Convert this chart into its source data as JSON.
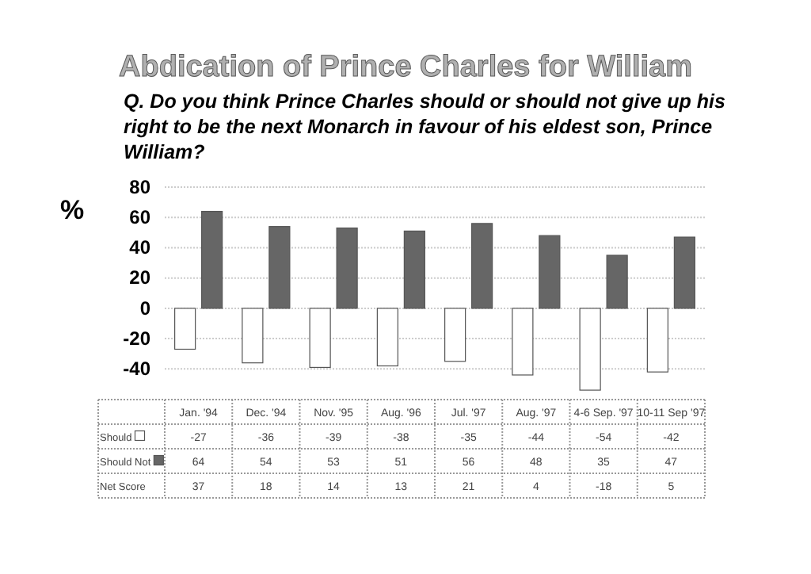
{
  "chart_data": {
    "type": "bar",
    "title": "Abdication of Prince Charles for William",
    "subtitle": "Q. Do you think Prince Charles should or should not give up his right to be the next  Monarch in favour of his eldest son, Prince William?",
    "ylabel": "%",
    "categories": [
      "Jan. '94",
      "Dec. '94",
      "Nov. '95",
      "Aug. '96",
      "Jul. '97",
      "Aug. '97",
      "4-6 Sep. '97",
      "10-11 Sep '97"
    ],
    "series": [
      {
        "name": "Should",
        "color": "#ffffff",
        "values": [
          -27,
          -36,
          -39,
          -38,
          -35,
          -44,
          -54,
          -42
        ]
      },
      {
        "name": "Should Not",
        "color": "#666666",
        "values": [
          64,
          54,
          53,
          51,
          56,
          48,
          35,
          47
        ]
      }
    ],
    "ylim": [
      -55,
      80
    ],
    "yticks": [
      -40,
      -20,
      0,
      20,
      40,
      60,
      80
    ],
    "grid": "y",
    "legend": "bottom",
    "data_labels": true,
    "annotations": [
      "Net Score",
      "37",
      "18",
      "14",
      "13",
      "21",
      "4",
      "-18",
      "5"
    ]
  }
}
